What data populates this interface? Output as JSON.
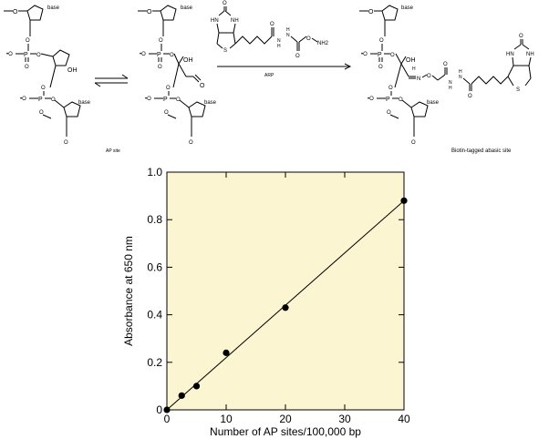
{
  "scheme": {
    "reagent_label": "ARP",
    "ap_site_caption": "AP site",
    "product_caption": "Biotin-tagged abasic site",
    "base_label": "base",
    "oh_label": "OH",
    "o_label": "O",
    "nh_label": "NH",
    "hn_label": "HN",
    "s_label": "S",
    "nh2_label": "NH2",
    "n_label": "N",
    "h_label": "H",
    "p_label": "P",
    "o_minus_label": "•O"
  },
  "chart_data": {
    "type": "scatter",
    "title": "",
    "xlabel": "Number of AP sites/100,000 bp",
    "ylabel": "Absorbance at 650 nm",
    "xlim": [
      0,
      40
    ],
    "ylim": [
      0,
      1.0
    ],
    "xticks": [
      "0",
      "10",
      "20",
      "30",
      "40"
    ],
    "yticks": [
      "0",
      "0.2",
      "0.4",
      "0.6",
      "0.8",
      "1.0"
    ],
    "points": [
      {
        "x": 0,
        "y": 0.0
      },
      {
        "x": 2.5,
        "y": 0.06
      },
      {
        "x": 5,
        "y": 0.1
      },
      {
        "x": 10,
        "y": 0.24
      },
      {
        "x": 20,
        "y": 0.43
      },
      {
        "x": 40,
        "y": 0.88
      }
    ],
    "fit_line": {
      "x": [
        0,
        40
      ],
      "y": [
        0.0,
        0.88
      ]
    },
    "plot_background": "#fcf5d2",
    "grid": false,
    "legend": "none"
  }
}
